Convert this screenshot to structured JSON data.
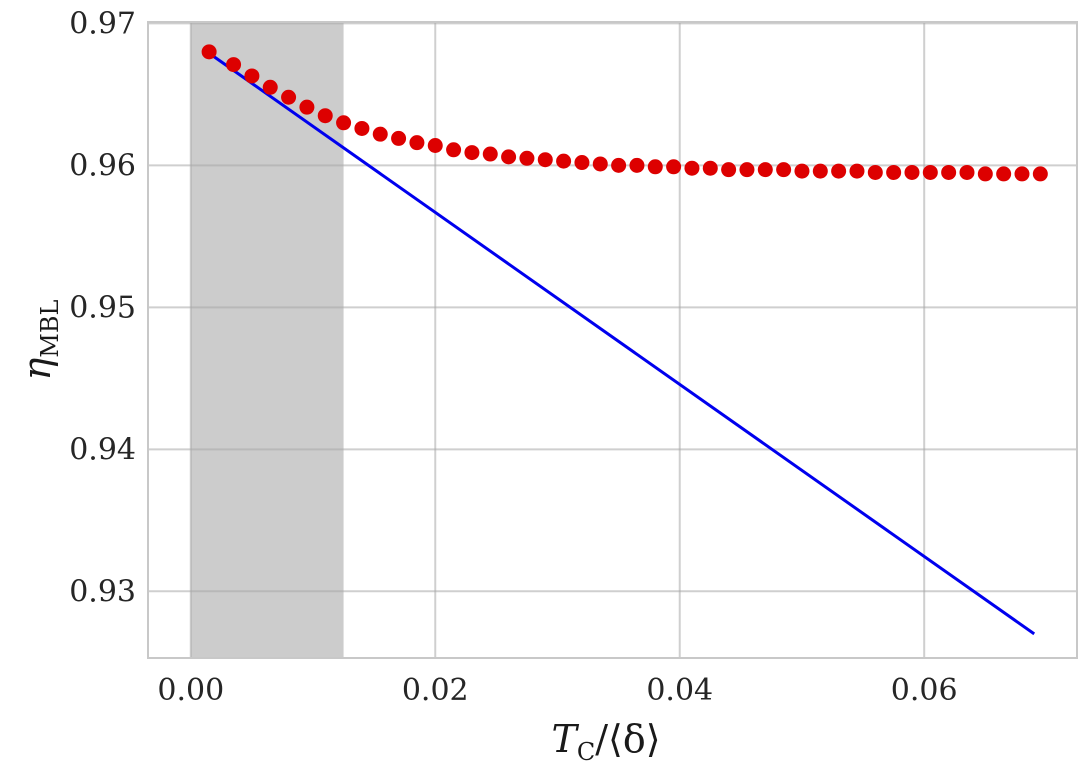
{
  "chart_data": {
    "type": "scatter",
    "title": "",
    "xlabel": {
      "main": "T",
      "sub": "C",
      "tail": "/⟨δ⟩"
    },
    "ylabel": {
      "main": "η",
      "sub": "MBL"
    },
    "xlim": [
      -0.0035,
      0.0725
    ],
    "ylim": [
      0.9253,
      0.9701
    ],
    "x_ticks": [
      0.0,
      0.02,
      0.04,
      0.06
    ],
    "x_tick_labels": [
      "0.00",
      "0.02",
      "0.04",
      "0.06"
    ],
    "y_ticks": [
      0.93,
      0.94,
      0.95,
      0.96,
      0.97
    ],
    "y_tick_labels": [
      "0.93",
      "0.94",
      "0.95",
      "0.96",
      "0.97"
    ],
    "grid": true,
    "shaded_region": {
      "x": [
        0.0,
        0.0125
      ],
      "color": "#cccccc"
    },
    "series": [
      {
        "kind": "scatter",
        "color": "#dd0000",
        "x": [
          0.0015,
          0.0035,
          0.005,
          0.0065,
          0.008,
          0.0095,
          0.011,
          0.0125,
          0.014,
          0.0155,
          0.017,
          0.0185,
          0.02,
          0.0215,
          0.023,
          0.0245,
          0.026,
          0.0275,
          0.029,
          0.0305,
          0.032,
          0.0335,
          0.035,
          0.0365,
          0.038,
          0.0395,
          0.041,
          0.0425,
          0.044,
          0.0455,
          0.047,
          0.0485,
          0.05,
          0.0515,
          0.053,
          0.0545,
          0.056,
          0.0575,
          0.059,
          0.0605,
          0.062,
          0.0635,
          0.065,
          0.0665,
          0.068,
          0.0695
        ],
        "y": [
          0.968,
          0.9671,
          0.9663,
          0.9655,
          0.9648,
          0.9641,
          0.9635,
          0.963,
          0.9626,
          0.9622,
          0.9619,
          0.9616,
          0.9614,
          0.9611,
          0.9609,
          0.9608,
          0.9606,
          0.9605,
          0.9604,
          0.9603,
          0.9602,
          0.9601,
          0.96,
          0.96,
          0.9599,
          0.9599,
          0.9598,
          0.9598,
          0.9597,
          0.9597,
          0.9597,
          0.9597,
          0.9596,
          0.9596,
          0.9596,
          0.9596,
          0.9595,
          0.9595,
          0.9595,
          0.9595,
          0.9595,
          0.9595,
          0.9594,
          0.9594,
          0.9594,
          0.9594
        ]
      },
      {
        "kind": "line",
        "color": "#0000ee",
        "x": [
          0.0015,
          0.069
        ],
        "y": [
          0.9679,
          0.927
        ]
      }
    ]
  }
}
